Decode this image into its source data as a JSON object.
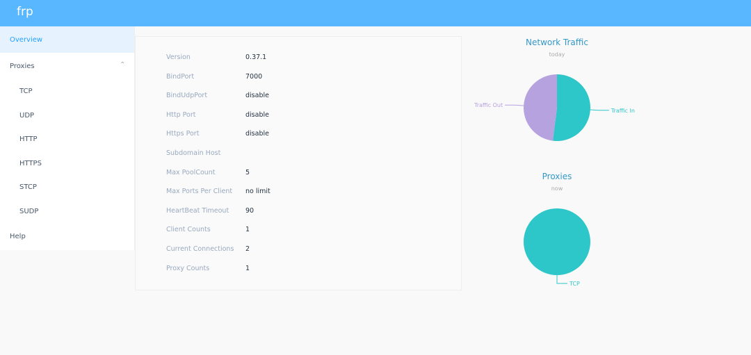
{
  "header": {
    "title": "frp"
  },
  "sidebar": {
    "items": [
      "Overview",
      "Proxies",
      "Help"
    ],
    "submenu": [
      "TCP",
      "UDP",
      "HTTP",
      "HTTPS",
      "STCP",
      "SUDP"
    ]
  },
  "info": {
    "rows": [
      [
        "Version",
        "0.37.1"
      ],
      [
        "BindPort",
        "7000"
      ],
      [
        "BindUdpPort",
        "disable"
      ],
      [
        "Http Port",
        "disable"
      ],
      [
        "Https Port",
        "disable"
      ],
      [
        "Subdomain Host"
      ],
      [
        "Max PoolCount",
        "5"
      ],
      [
        "Max Ports Per Client",
        "no limit"
      ],
      [
        "HeartBeat Timeout",
        "90"
      ],
      [
        "Client Counts",
        "1"
      ],
      [
        "Current Connections",
        "2"
      ],
      [
        "Proxy Counts",
        "1"
      ]
    ]
  },
  "chart_data": [
    {
      "type": "pie",
      "title": "Network Traffic",
      "subtitle": "today",
      "categories": [
        "Traffic In",
        "Traffic Out"
      ],
      "values": [
        52,
        48
      ],
      "colors": [
        "#2ec7c9",
        "#b6a2de"
      ]
    },
    {
      "type": "pie",
      "title": "Proxies",
      "subtitle": "now",
      "categories": [
        "TCP"
      ],
      "values": [
        1
      ],
      "colors": [
        "#2ec7c9"
      ]
    }
  ]
}
